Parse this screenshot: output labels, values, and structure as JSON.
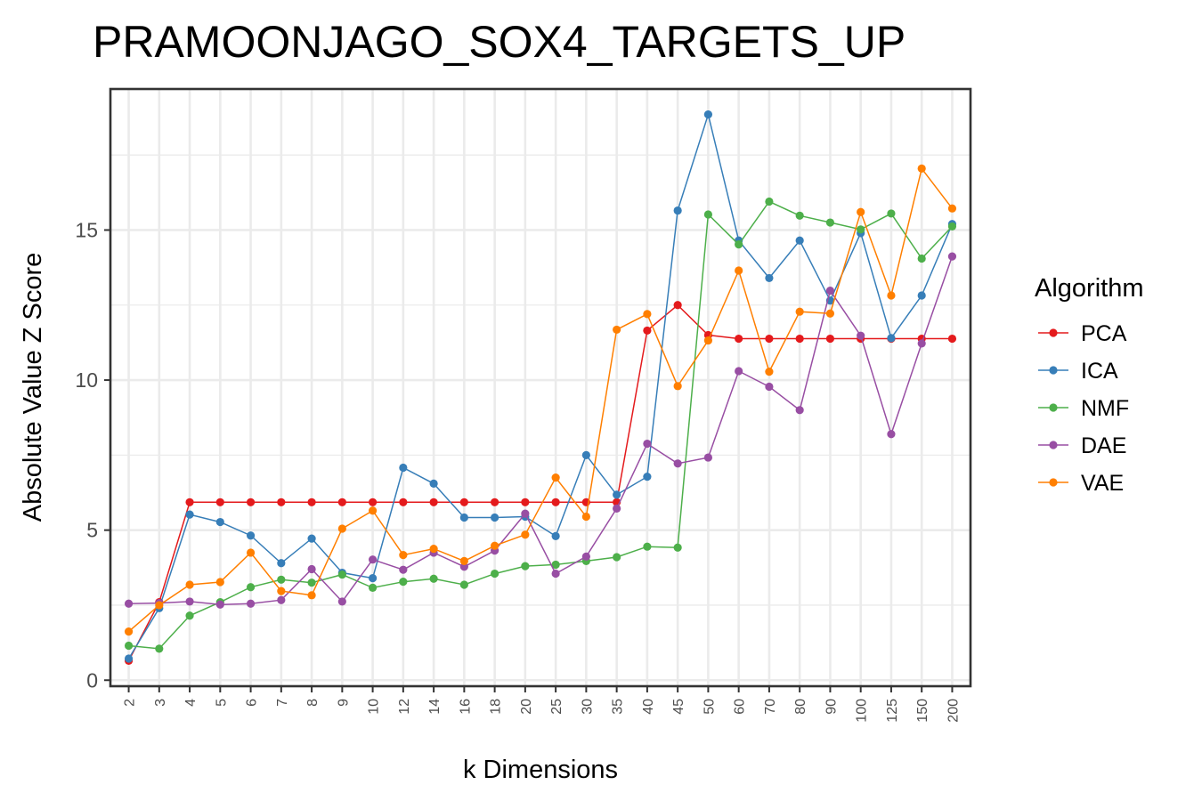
{
  "chart_data": {
    "type": "line",
    "title": "PRAMOONJAGO_SOX4_TARGETS_UP",
    "xlabel": "k Dimensions",
    "ylabel": "Absolute Value Z Score",
    "categories": [
      "2",
      "3",
      "4",
      "5",
      "6",
      "7",
      "8",
      "9",
      "10",
      "12",
      "14",
      "16",
      "18",
      "20",
      "25",
      "30",
      "35",
      "40",
      "45",
      "50",
      "60",
      "70",
      "80",
      "90",
      "100",
      "125",
      "150",
      "200"
    ],
    "yticks": [
      0,
      5,
      10,
      15
    ],
    "ylim": [
      -0.2,
      19.7
    ],
    "grid": true,
    "legend": {
      "title": "Algorithm",
      "placement": "right"
    },
    "series": [
      {
        "name": "PCA",
        "color": "#e41a1c",
        "values": [
          0.65,
          2.6,
          5.93,
          5.93,
          5.93,
          5.93,
          5.93,
          5.93,
          5.93,
          5.93,
          5.93,
          5.93,
          5.93,
          5.93,
          5.93,
          5.93,
          5.93,
          11.65,
          12.5,
          11.5,
          11.38,
          11.38,
          11.38,
          11.38,
          11.38,
          11.38,
          11.38,
          11.38
        ]
      },
      {
        "name": "ICA",
        "color": "#377eb8",
        "values": [
          0.72,
          2.4,
          5.52,
          5.27,
          4.82,
          3.9,
          4.72,
          3.58,
          3.4,
          7.08,
          6.55,
          5.42,
          5.42,
          5.45,
          4.8,
          7.5,
          6.18,
          6.78,
          15.65,
          18.85,
          14.65,
          13.4,
          14.65,
          12.65,
          14.9,
          11.4,
          12.82,
          15.2
        ]
      },
      {
        "name": "NMF",
        "color": "#4daf4a",
        "values": [
          1.15,
          1.05,
          2.15,
          2.6,
          3.1,
          3.35,
          3.25,
          3.52,
          3.08,
          3.28,
          3.38,
          3.18,
          3.55,
          3.8,
          3.85,
          3.97,
          4.1,
          4.45,
          4.42,
          15.52,
          14.52,
          15.95,
          15.48,
          15.25,
          15.02,
          15.55,
          14.05,
          15.12
        ]
      },
      {
        "name": "DAE",
        "color": "#984ea3",
        "values": [
          2.55,
          2.57,
          2.62,
          2.52,
          2.55,
          2.67,
          3.7,
          2.62,
          4.02,
          3.68,
          4.25,
          3.78,
          4.32,
          5.55,
          3.55,
          4.12,
          5.72,
          7.88,
          7.22,
          7.42,
          10.3,
          9.78,
          9.0,
          12.98,
          11.48,
          8.2,
          11.22,
          14.12
        ]
      },
      {
        "name": "VAE",
        "color": "#ff7f00",
        "values": [
          1.62,
          2.5,
          3.18,
          3.27,
          4.25,
          2.97,
          2.83,
          5.05,
          5.65,
          4.17,
          4.38,
          3.97,
          4.48,
          4.85,
          6.75,
          5.45,
          11.68,
          12.2,
          9.8,
          11.32,
          13.65,
          10.28,
          12.28,
          12.22,
          15.6,
          12.82,
          17.05,
          15.72
        ]
      }
    ]
  }
}
